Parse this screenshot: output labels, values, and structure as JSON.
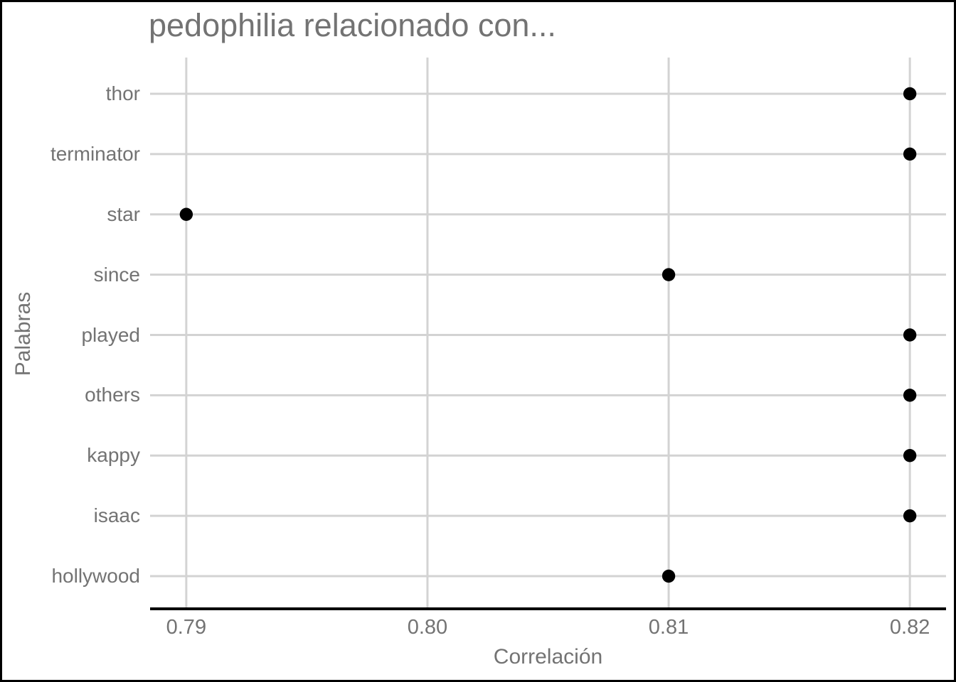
{
  "chart_data": {
    "type": "scatter",
    "orientation": "horizontal-dotplot",
    "title": "pedophilia relacionado con...",
    "xlabel": "Correlación",
    "ylabel": "Palabras",
    "categories": [
      "thor",
      "terminator",
      "star",
      "since",
      "played",
      "others",
      "kappy",
      "isaac",
      "hollywood"
    ],
    "values": [
      0.82,
      0.82,
      0.79,
      0.81,
      0.82,
      0.82,
      0.82,
      0.82,
      0.81
    ],
    "x_ticks": [
      {
        "label": "0.79",
        "value": 0.79
      },
      {
        "label": "0.80",
        "value": 0.8
      },
      {
        "label": "0.81",
        "value": 0.81
      },
      {
        "label": "0.82",
        "value": 0.82
      }
    ],
    "xlim": [
      0.7885,
      0.8215
    ],
    "grid": true,
    "legend": "none",
    "colors": {
      "points": "#000000",
      "grid": "#d3d3d3",
      "axis_line": "#000000",
      "text": "#737373",
      "background": "#ffffff",
      "border": "#000000"
    }
  }
}
